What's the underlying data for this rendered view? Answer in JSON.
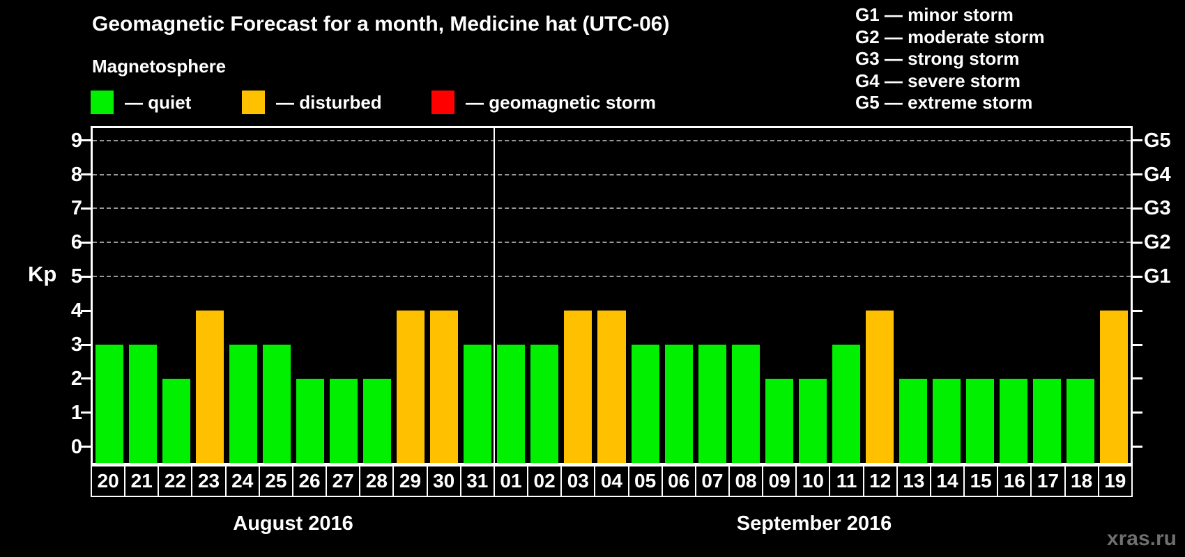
{
  "title": "Geomagnetic Forecast for a month, Medicine hat (UTC-06)",
  "watermark": "xras.ru",
  "legend": {
    "heading": "Magnetosphere",
    "items": [
      {
        "label": "— quiet",
        "color": "#00f000",
        "status": "quiet"
      },
      {
        "label": "— disturbed",
        "color": "#ffc000",
        "status": "disturbed"
      },
      {
        "label": "— geomagnetic storm",
        "color": "#ff0000",
        "status": "storm"
      }
    ]
  },
  "storm_scale": [
    "G1 — minor storm",
    "G2 — moderate storm",
    "G3 — strong storm",
    "G4 — severe storm",
    "G5 — extreme storm"
  ],
  "chart_data": {
    "type": "bar",
    "title": "Geomagnetic Forecast for a month, Medicine hat (UTC-06)",
    "ylabel": "Kp",
    "ylim": [
      -0.55,
      9.45
    ],
    "y_ticks": [
      0,
      1,
      2,
      3,
      4,
      5,
      6,
      7,
      8,
      9
    ],
    "gridlines_at": [
      5,
      6,
      7,
      8,
      9
    ],
    "grid": "dashed horizontal at G-storm levels only",
    "right_axis": [
      {
        "label": "G1",
        "kp": 5
      },
      {
        "label": "G2",
        "kp": 6
      },
      {
        "label": "G3",
        "kp": 7
      },
      {
        "label": "G4",
        "kp": 8
      },
      {
        "label": "G5",
        "kp": 9
      }
    ],
    "status_colors": {
      "quiet": "#00f000",
      "disturbed": "#ffc000",
      "storm": "#ff0000"
    },
    "months": [
      {
        "label": "August 2016",
        "days": [
          {
            "day": "20",
            "kp": 3,
            "status": "quiet"
          },
          {
            "day": "21",
            "kp": 3,
            "status": "quiet"
          },
          {
            "day": "22",
            "kp": 2,
            "status": "quiet"
          },
          {
            "day": "23",
            "kp": 4,
            "status": "disturbed"
          },
          {
            "day": "24",
            "kp": 3,
            "status": "quiet"
          },
          {
            "day": "25",
            "kp": 3,
            "status": "quiet"
          },
          {
            "day": "26",
            "kp": 2,
            "status": "quiet"
          },
          {
            "day": "27",
            "kp": 2,
            "status": "quiet"
          },
          {
            "day": "28",
            "kp": 2,
            "status": "quiet"
          },
          {
            "day": "29",
            "kp": 4,
            "status": "disturbed"
          },
          {
            "day": "30",
            "kp": 4,
            "status": "disturbed"
          },
          {
            "day": "31",
            "kp": 3,
            "status": "quiet"
          }
        ]
      },
      {
        "label": "September 2016",
        "days": [
          {
            "day": "01",
            "kp": 3,
            "status": "quiet"
          },
          {
            "day": "02",
            "kp": 3,
            "status": "quiet"
          },
          {
            "day": "03",
            "kp": 4,
            "status": "disturbed"
          },
          {
            "day": "04",
            "kp": 4,
            "status": "disturbed"
          },
          {
            "day": "05",
            "kp": 3,
            "status": "quiet"
          },
          {
            "day": "06",
            "kp": 3,
            "status": "quiet"
          },
          {
            "day": "07",
            "kp": 3,
            "status": "quiet"
          },
          {
            "day": "08",
            "kp": 3,
            "status": "quiet"
          },
          {
            "day": "09",
            "kp": 2,
            "status": "quiet"
          },
          {
            "day": "10",
            "kp": 2,
            "status": "quiet"
          },
          {
            "day": "11",
            "kp": 3,
            "status": "quiet"
          },
          {
            "day": "12",
            "kp": 4,
            "status": "disturbed"
          },
          {
            "day": "13",
            "kp": 2,
            "status": "quiet"
          },
          {
            "day": "14",
            "kp": 2,
            "status": "quiet"
          },
          {
            "day": "15",
            "kp": 2,
            "status": "quiet"
          },
          {
            "day": "16",
            "kp": 2,
            "status": "quiet"
          },
          {
            "day": "17",
            "kp": 2,
            "status": "quiet"
          },
          {
            "day": "18",
            "kp": 2,
            "status": "quiet"
          },
          {
            "day": "19",
            "kp": 4,
            "status": "disturbed"
          }
        ]
      }
    ]
  }
}
